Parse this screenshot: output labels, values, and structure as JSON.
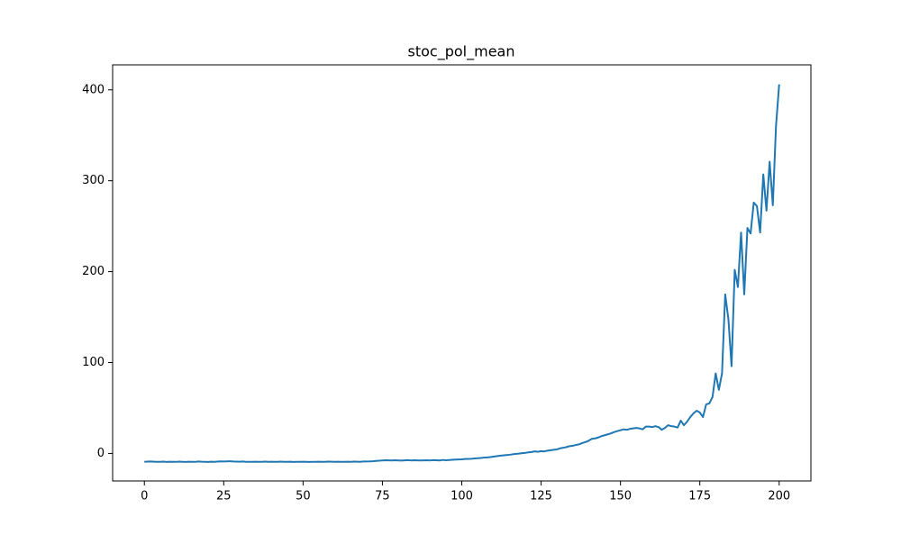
{
  "chart_data": {
    "type": "line",
    "title": "stoc_pol_mean",
    "color": "#1f77b4",
    "x": [
      0,
      1,
      2,
      3,
      4,
      5,
      6,
      7,
      8,
      9,
      10,
      11,
      12,
      13,
      14,
      15,
      16,
      17,
      18,
      19,
      20,
      21,
      22,
      23,
      24,
      25,
      26,
      27,
      28,
      29,
      30,
      31,
      32,
      33,
      34,
      35,
      36,
      37,
      38,
      39,
      40,
      41,
      42,
      43,
      44,
      45,
      46,
      47,
      48,
      49,
      50,
      51,
      52,
      53,
      54,
      55,
      56,
      57,
      58,
      59,
      60,
      61,
      62,
      63,
      64,
      65,
      66,
      67,
      68,
      69,
      70,
      71,
      72,
      73,
      74,
      75,
      76,
      77,
      78,
      79,
      80,
      81,
      82,
      83,
      84,
      85,
      86,
      87,
      88,
      89,
      90,
      91,
      92,
      93,
      94,
      95,
      96,
      97,
      98,
      99,
      100,
      101,
      102,
      103,
      104,
      105,
      106,
      107,
      108,
      109,
      110,
      111,
      112,
      113,
      114,
      115,
      116,
      117,
      118,
      119,
      120,
      121,
      122,
      123,
      124,
      125,
      126,
      127,
      128,
      129,
      130,
      131,
      132,
      133,
      134,
      135,
      136,
      137,
      138,
      139,
      140,
      141,
      142,
      143,
      144,
      145,
      146,
      147,
      148,
      149,
      150,
      151,
      152,
      153,
      154,
      155,
      156,
      157,
      158,
      159,
      160,
      161,
      162,
      163,
      164,
      165,
      166,
      167,
      168,
      169,
      170,
      171,
      172,
      173,
      174,
      175,
      176,
      177,
      178,
      179,
      180,
      181,
      182,
      183,
      184,
      185,
      186,
      187,
      188,
      189,
      190,
      191,
      192,
      193,
      194,
      195,
      196,
      197,
      198,
      199,
      200
    ],
    "values": [
      -9.2,
      -9,
      -8.9,
      -9.1,
      -9.3,
      -9.2,
      -9,
      -9.4,
      -9.1,
      -9.2,
      -9.3,
      -9,
      -9.2,
      -9.4,
      -9.1,
      -9.2,
      -9.3,
      -8.9,
      -9.1,
      -9.2,
      -9.4,
      -9.1,
      -9.2,
      -9,
      -8.8,
      -8.9,
      -8.7,
      -8.6,
      -8.9,
      -9,
      -9.1,
      -8.9,
      -9.2,
      -9.3,
      -9.2,
      -9.1,
      -9.3,
      -9.2,
      -9,
      -9.2,
      -9.1,
      -9.3,
      -9.2,
      -9,
      -9.2,
      -9.3,
      -9.1,
      -9.4,
      -9.2,
      -9.3,
      -9.1,
      -9.2,
      -9.4,
      -9.3,
      -9.2,
      -9.1,
      -9.3,
      -9.2,
      -9,
      -9.1,
      -9.2,
      -9.1,
      -9.3,
      -9.2,
      -9.1,
      -9.2,
      -9,
      -9.1,
      -9.2,
      -8.9,
      -8.9,
      -8.8,
      -8.6,
      -8.3,
      -8,
      -7.7,
      -7.5,
      -7.6,
      -7.8,
      -7.5,
      -7.7,
      -7.9,
      -7.6,
      -7.4,
      -7.7,
      -7.5,
      -7.6,
      -7.8,
      -7.6,
      -7.5,
      -7.7,
      -7.4,
      -7.5,
      -7.8,
      -7.2,
      -7.5,
      -7.3,
      -7,
      -6.8,
      -6.6,
      -6.5,
      -6.2,
      -6,
      -5.9,
      -5.5,
      -5.3,
      -5,
      -4.6,
      -4.4,
      -4,
      -3.5,
      -3,
      -2.6,
      -2.2,
      -1.8,
      -1.5,
      -1,
      -0.6,
      -0.2,
      0.3,
      0.6,
      1.2,
      1.5,
      2.3,
      1.8,
      2.5,
      2.2,
      3,
      3.5,
      4,
      4.4,
      5.6,
      6.2,
      7,
      8,
      8.5,
      9.3,
      10,
      11.5,
      12.5,
      14,
      16,
      16.5,
      17.5,
      19,
      20,
      21,
      22,
      23.5,
      24.5,
      25.5,
      26.5,
      26,
      27,
      27.5,
      28,
      27.5,
      26.5,
      29.5,
      29.5,
      29,
      30,
      29,
      26,
      28,
      31,
      30,
      29.5,
      28.5,
      36,
      31,
      35,
      40,
      44,
      47,
      45,
      40,
      54,
      55,
      62,
      88,
      70,
      88,
      175,
      148,
      96,
      202,
      183,
      243,
      175,
      248,
      242,
      276,
      272,
      243,
      307,
      267,
      321,
      273,
      360,
      406
    ],
    "xlim": [
      -10,
      210
    ],
    "xticks": [
      0,
      25,
      50,
      75,
      100,
      125,
      150,
      175,
      200
    ],
    "ylim": [
      -30.3,
      427.5
    ],
    "yticks": [
      0,
      100,
      200,
      300,
      400
    ]
  }
}
